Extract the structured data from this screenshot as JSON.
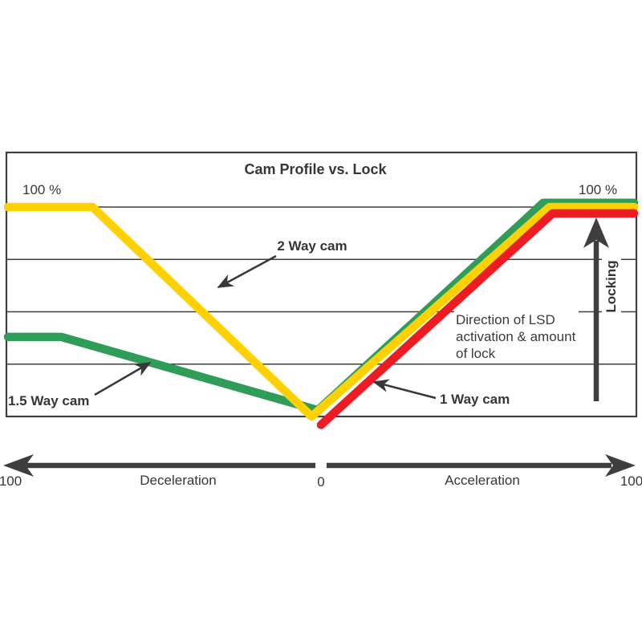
{
  "title": "Cam Profile vs. Lock",
  "top_left_pct": "100 %",
  "top_right_pct": "100 %",
  "locking_label": "Locking",
  "annotation": {
    "line1": "Direction of LSD",
    "line2": "activation & amount",
    "line3": "of lock"
  },
  "x_axis": {
    "left_value": "100",
    "center_value": "0",
    "right_value": "100",
    "left_label": "Deceleration",
    "right_label": "Acceleration"
  },
  "colors": {
    "arrow": "#3E3E3E",
    "text": "#363636",
    "grid": "#3F3F3F"
  },
  "chart_data": {
    "type": "line",
    "title": "Cam Profile vs. Lock",
    "x_axis": {
      "range": [
        -100,
        100
      ],
      "ticks": [
        -100,
        0,
        100
      ],
      "tick_labels": [
        "100",
        "0",
        "100"
      ],
      "label_negative": "Deceleration",
      "label_positive": "Acceleration"
    },
    "y_axis": {
      "label": "Locking",
      "unit": "% lock",
      "range": [
        0,
        100
      ],
      "gridlines_pct": [
        25,
        50,
        75,
        100
      ],
      "top_left_marker": "100 %",
      "top_right_marker": "100 %"
    },
    "grid": true,
    "legend_position": "inline-annotations",
    "annotation": "Direction of LSD activation & amount of lock",
    "series": [
      {
        "name": "1.5 Way cam",
        "color": "#2F9D58",
        "points": [
          [
            -100,
            38
          ],
          [
            -83,
            38
          ],
          [
            -1,
            3
          ],
          [
            71,
            102
          ],
          [
            100,
            102
          ]
        ]
      },
      {
        "name": "2 Way cam",
        "color": "#FFD100",
        "points": [
          [
            -100,
            100
          ],
          [
            -73,
            100
          ],
          [
            -3,
            0
          ],
          [
            73,
            100
          ],
          [
            100,
            100
          ]
        ]
      },
      {
        "name": "1 Way cam",
        "color": "#EC1B24",
        "points": [
          [
            0,
            -4
          ],
          [
            74,
            97
          ],
          [
            100,
            97
          ]
        ]
      }
    ]
  }
}
